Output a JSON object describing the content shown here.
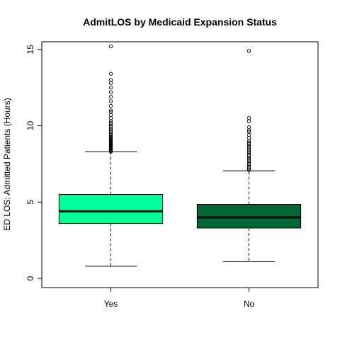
{
  "chart_data": {
    "type": "boxplot",
    "title": "AdmitLOS by Medicaid Expansion Status",
    "xlabel": "",
    "ylabel": "ED LOS: Admitted Patients (Hours)",
    "ylim": [
      -0.6,
      15.5
    ],
    "yticks": [
      0,
      5,
      10,
      15
    ],
    "grid": false,
    "legend": "none",
    "categories": [
      "Yes",
      "No"
    ],
    "boxes": [
      {
        "category": "Yes",
        "color": "#00FF99",
        "q1": 3.6,
        "median": 4.4,
        "q3": 5.5,
        "whisker_low": 0.8,
        "whisker_high": 8.3,
        "outliers": [
          8.3,
          8.35,
          8.4,
          8.45,
          8.5,
          8.55,
          8.6,
          8.65,
          8.7,
          8.75,
          8.8,
          8.85,
          8.9,
          8.95,
          9.0,
          9.05,
          9.1,
          9.15,
          9.2,
          9.25,
          9.3,
          9.4,
          9.5,
          9.6,
          9.7,
          9.8,
          9.9,
          10.0,
          10.1,
          10.2,
          10.3,
          10.5,
          10.7,
          10.9,
          11.0,
          11.3,
          11.6,
          11.9,
          12.2,
          12.5,
          12.8,
          13.0,
          13.4,
          15.2
        ]
      },
      {
        "category": "No",
        "color": "#006633",
        "q1": 3.3,
        "median": 4.0,
        "q3": 4.85,
        "whisker_low": 1.1,
        "whisker_high": 7.05,
        "outliers": [
          7.1,
          7.2,
          7.3,
          7.4,
          7.5,
          7.6,
          7.7,
          7.8,
          7.9,
          8.0,
          8.1,
          8.2,
          8.3,
          8.4,
          8.5,
          8.6,
          8.7,
          8.8,
          8.9,
          9.0,
          9.2,
          9.4,
          9.6,
          9.7,
          9.9,
          10.3,
          10.5,
          14.9
        ]
      }
    ]
  }
}
